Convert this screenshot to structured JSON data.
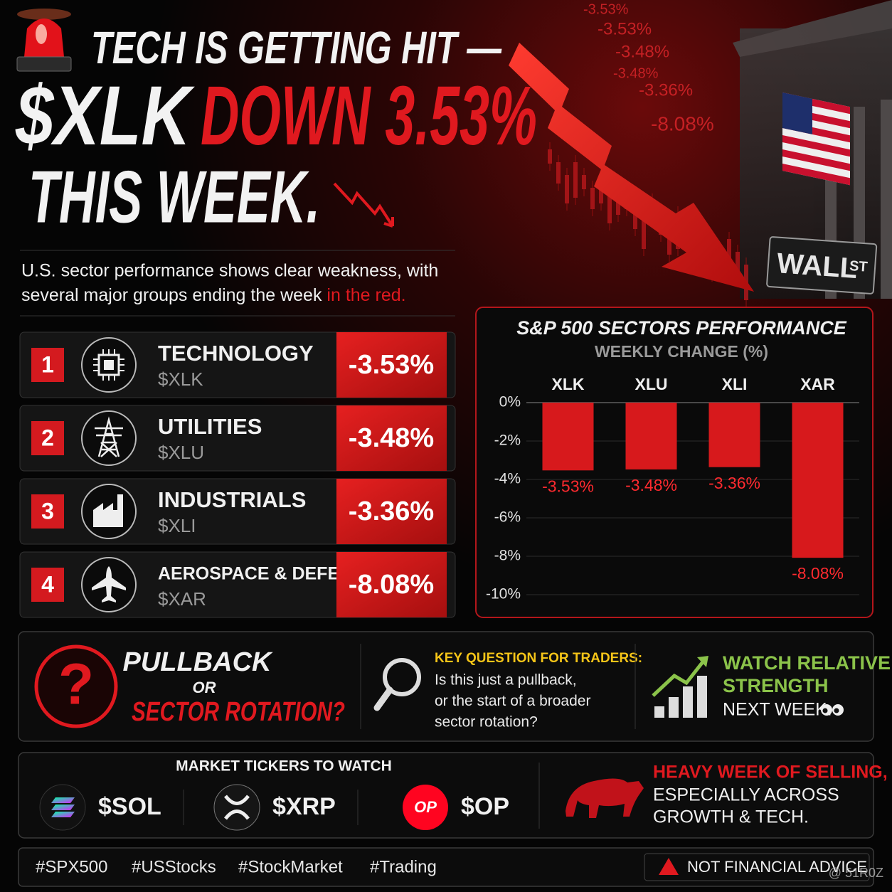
{
  "header": {
    "line1": "TECH IS GETTING HIT —",
    "line2_ticker": "$XLK",
    "line2_change": "DOWN 3.53%",
    "line3": "THIS WEEK."
  },
  "background_labels": [
    "-3.53%",
    "-3.53%",
    "-3.48%",
    "-3.48%",
    "-3.36%",
    "-8.08%"
  ],
  "street_sign": {
    "main": "WALL",
    "suffix": "ST"
  },
  "intro": {
    "line1": "U.S. sector performance shows clear weakness, with",
    "line2": "several major groups ending the week",
    "highlight": "in the red."
  },
  "sectors": [
    {
      "rank": 1,
      "name": "TECHNOLOGY",
      "ticker": "$XLK",
      "change": "-3.53%"
    },
    {
      "rank": 2,
      "name": "UTILITIES",
      "ticker": "$XLU",
      "change": "-3.48%"
    },
    {
      "rank": 3,
      "name": "INDUSTRIALS",
      "ticker": "$XLI",
      "change": "-3.36%"
    },
    {
      "rank": 4,
      "name": "AEROSPACE & DEFENSE",
      "ticker": "$XAR",
      "change": "-8.08%"
    }
  ],
  "chart_data": {
    "type": "bar",
    "title": "S&P 500 SECTORS PERFORMANCE",
    "subtitle": "WEEKLY CHANGE (%)",
    "categories": [
      "XLK",
      "XLU",
      "XLI",
      "XAR"
    ],
    "values": [
      -3.53,
      -3.48,
      -3.36,
      -8.08
    ],
    "value_labels": [
      "-3.53%",
      "-3.48%",
      "-3.36%",
      "-8.08%"
    ],
    "color": "#d7191c",
    "ylim": [
      -10,
      0
    ],
    "yticks": [
      {
        "value": 0,
        "label": "0%"
      },
      {
        "value": -2,
        "label": "-2%"
      },
      {
        "value": -4,
        "label": "-4%"
      },
      {
        "value": -6,
        "label": "-6%"
      },
      {
        "value": -8,
        "label": "-8%"
      },
      {
        "value": -10,
        "label": "-10%"
      }
    ],
    "grid": true
  },
  "question": {
    "top": "PULLBACK",
    "middle": "OR",
    "bottom": "SECTOR ROTATION?",
    "symbol": "?"
  },
  "key_question": {
    "title": "KEY QUESTION FOR TRADERS:",
    "lines": [
      "Is this just a pullback,",
      "or the start of a broader",
      "sector rotation?"
    ]
  },
  "watch": {
    "line1": "WATCH RELATIVE",
    "line2": "STRENGTH",
    "line3": "NEXT WEEK."
  },
  "tickers": {
    "title": "MARKET TICKERS TO WATCH",
    "items": [
      {
        "symbol": "$SOL"
      },
      {
        "symbol": "$XRP"
      },
      {
        "symbol": "$OP",
        "icon_text": "OP"
      }
    ]
  },
  "bear_note": {
    "line1": "HEAVY WEEK OF SELLING,",
    "line2": "ESPECIALLY ACROSS",
    "line3": "GROWTH & TECH."
  },
  "hashtags": [
    "#SPX500",
    "#USStocks",
    "#StockMarket",
    "#Trading"
  ],
  "disclaimer": "NOT FINANCIAL ADVICE",
  "watermark": "@ 51R0Z"
}
